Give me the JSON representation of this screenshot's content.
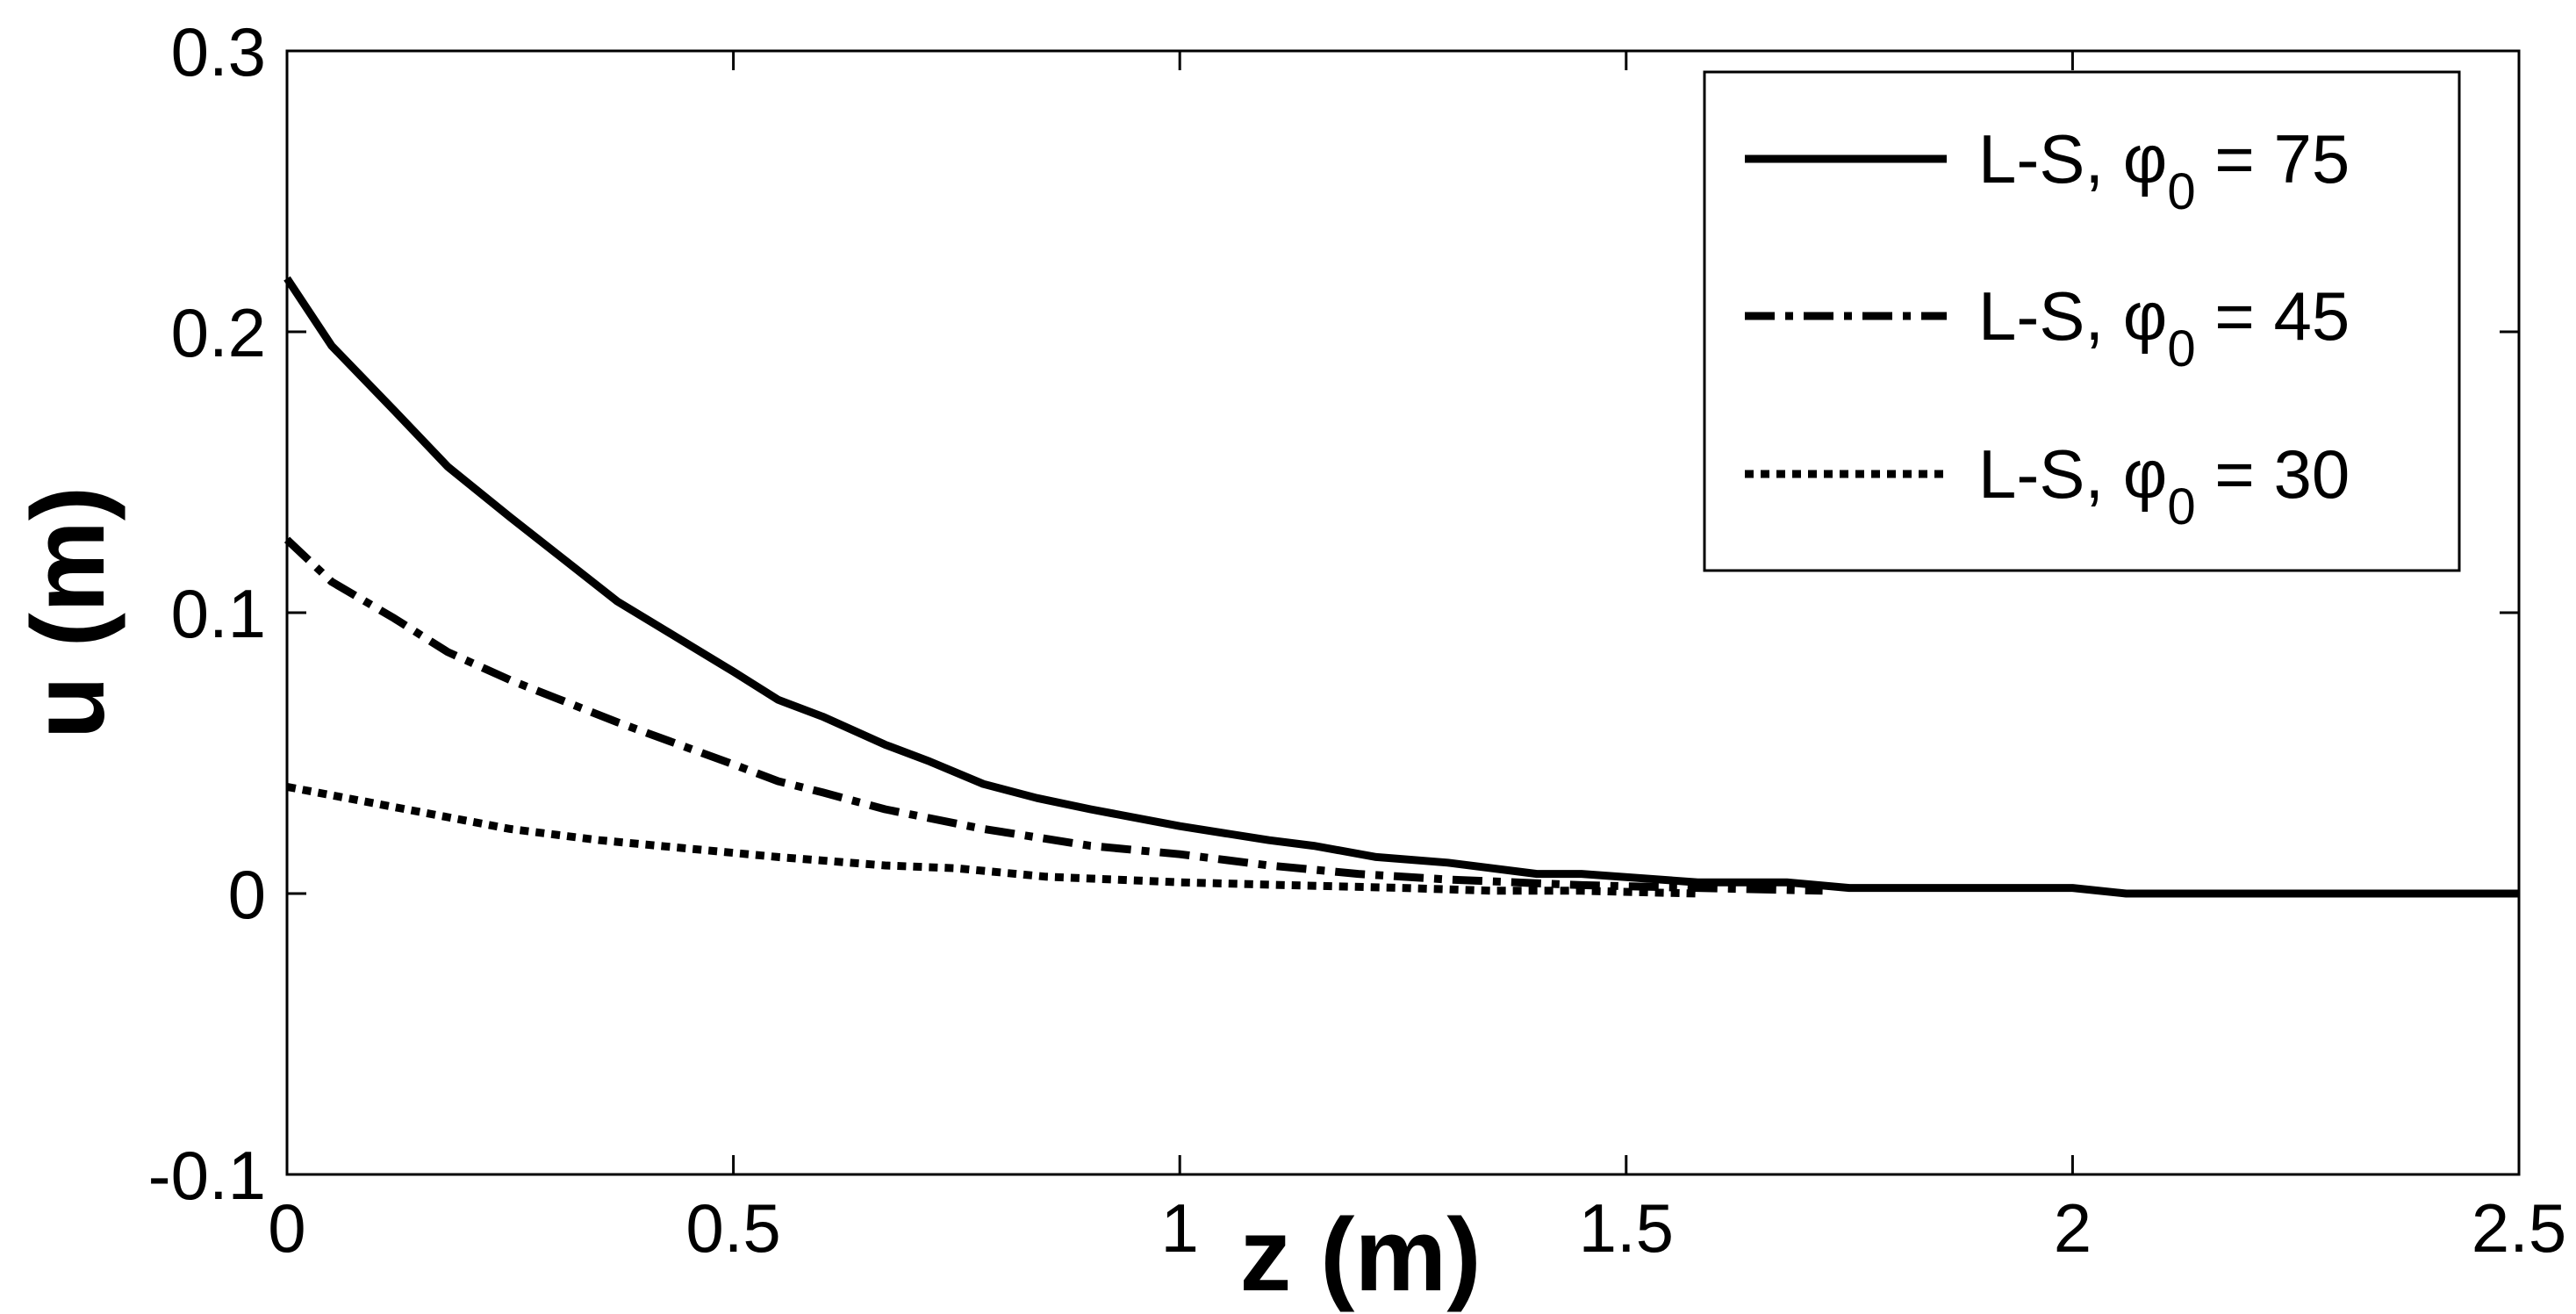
{
  "chart_data": {
    "type": "line",
    "title": "",
    "xlabel": "z (m)",
    "ylabel": "u (m)",
    "xlim": [
      0,
      2.5
    ],
    "ylim": [
      -0.1,
      0.3
    ],
    "xticks": [
      0,
      0.5,
      1,
      1.5,
      2,
      2.5
    ],
    "xtick_labels": [
      "0",
      "0.5",
      "1",
      "1.5",
      "2",
      "2.5"
    ],
    "yticks": [
      -0.1,
      0,
      0.1,
      0.2,
      0.3
    ],
    "ytick_labels": [
      "-0.1",
      "0",
      "0.1",
      "0.2",
      "0.3"
    ],
    "grid": false,
    "legend_position": "top-right",
    "series": [
      {
        "legend_prefix": "L-S, ",
        "legend_symbol": "φ",
        "legend_subscript": "0",
        "legend_suffix": " = 75",
        "line_style": "solid",
        "x": [
          0,
          0.05,
          0.12,
          0.18,
          0.25,
          0.37,
          0.5,
          0.55,
          0.6,
          0.67,
          0.72,
          0.78,
          0.84,
          0.9,
          1.0,
          1.1,
          1.15,
          1.22,
          1.3,
          1.4,
          1.45,
          1.58,
          1.68,
          1.75,
          2.0,
          2.06,
          2.5
        ],
        "y": [
          0.219,
          0.195,
          0.172,
          0.152,
          0.134,
          0.104,
          0.079,
          0.069,
          0.063,
          0.053,
          0.047,
          0.039,
          0.034,
          0.03,
          0.024,
          0.019,
          0.017,
          0.013,
          0.011,
          0.007,
          0.007,
          0.004,
          0.004,
          0.002,
          0.002,
          0.0,
          0.0
        ]
      },
      {
        "legend_prefix": "L-S, ",
        "legend_symbol": "φ",
        "legend_subscript": "0",
        "legend_suffix": " = 45",
        "line_style": "dashdot",
        "x": [
          0,
          0.05,
          0.12,
          0.18,
          0.25,
          0.37,
          0.5,
          0.55,
          0.6,
          0.67,
          0.78,
          0.9,
          1.0,
          1.1,
          1.2,
          1.3,
          1.45,
          1.58,
          1.72
        ],
        "y": [
          0.126,
          0.111,
          0.098,
          0.086,
          0.076,
          0.061,
          0.046,
          0.04,
          0.036,
          0.03,
          0.023,
          0.017,
          0.014,
          0.01,
          0.007,
          0.005,
          0.003,
          0.002,
          0.001
        ]
      },
      {
        "legend_prefix": "L-S, ",
        "legend_symbol": "φ",
        "legend_subscript": "0",
        "legend_suffix": " = 30",
        "line_style": "dotted",
        "x": [
          0,
          0.1,
          0.2,
          0.25,
          0.35,
          0.45,
          0.55,
          0.67,
          0.75,
          0.85,
          1.0,
          1.12,
          1.25,
          1.35,
          1.45,
          1.58
        ],
        "y": [
          0.038,
          0.032,
          0.026,
          0.023,
          0.019,
          0.016,
          0.013,
          0.01,
          0.009,
          0.006,
          0.004,
          0.003,
          0.002,
          0.001,
          0.001,
          0.0
        ]
      }
    ]
  }
}
